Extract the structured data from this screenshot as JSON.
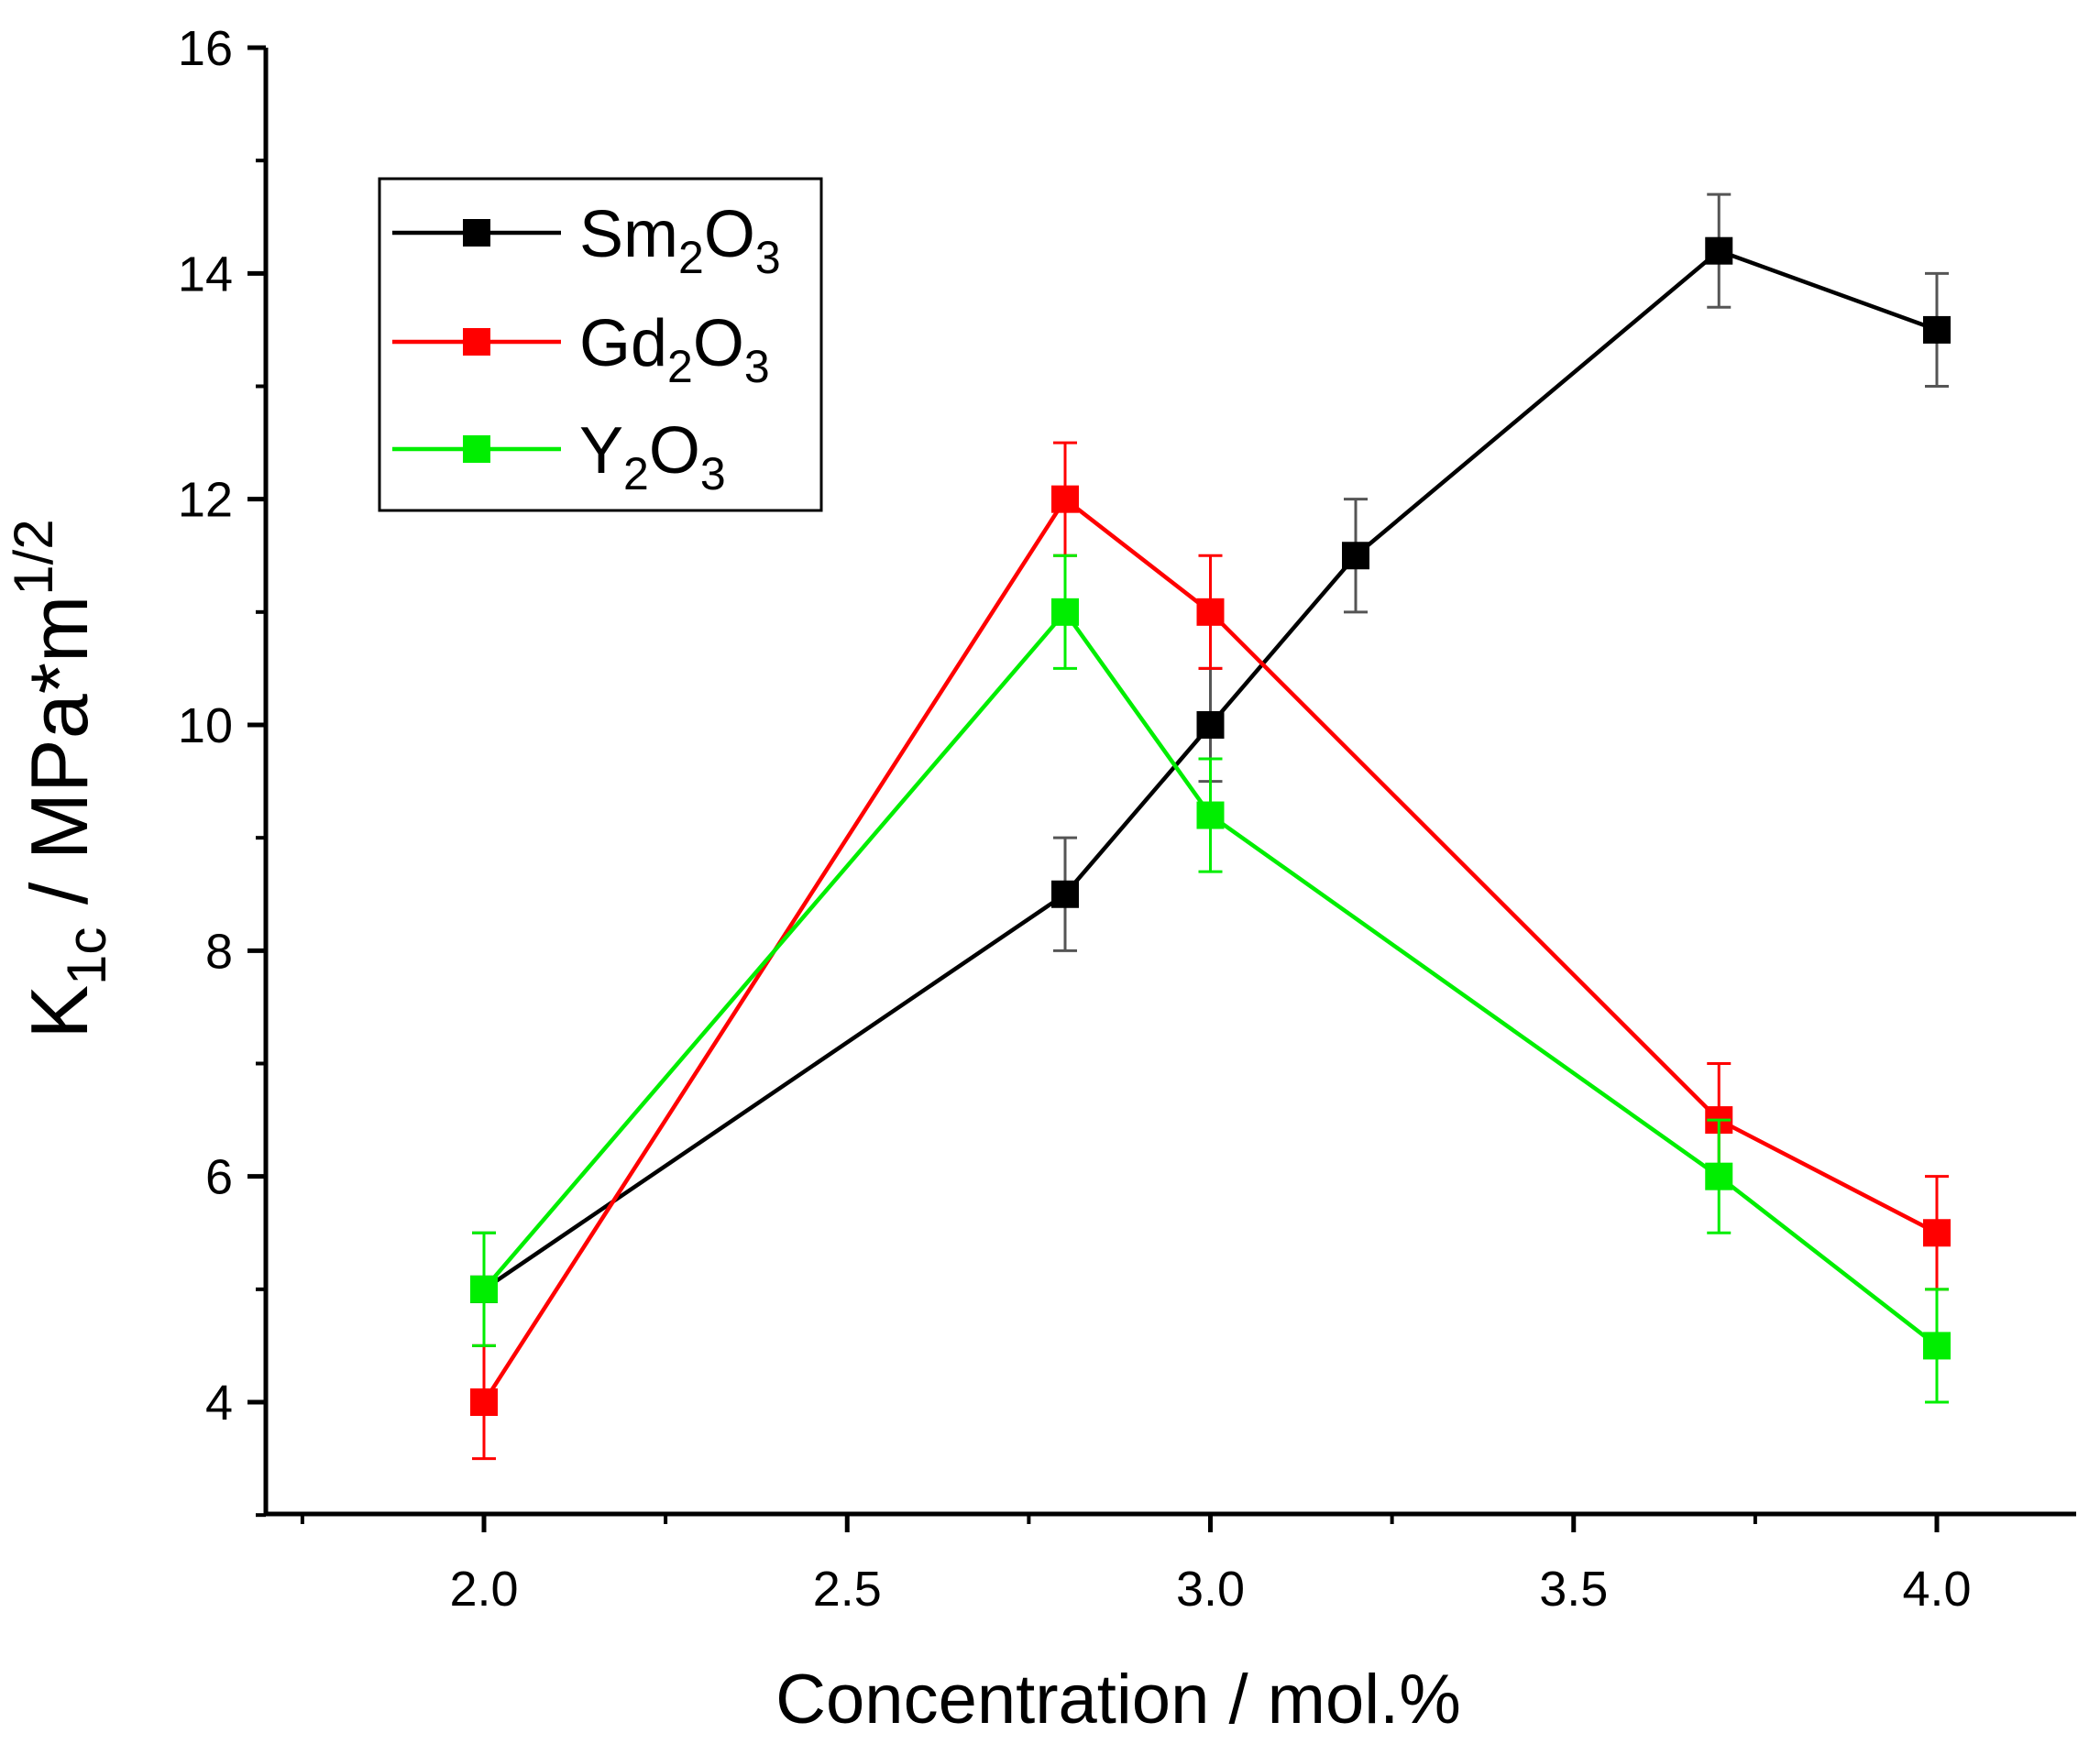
{
  "chart_data": {
    "type": "line",
    "title": "",
    "xlabel": "Concentration / mol.%",
    "ylabel": {
      "base": "K",
      "base_sub": "1c",
      "unit": " / MPa*m",
      "unit_sup": "1/2"
    },
    "xlim": [
      1.75,
      4.2
    ],
    "ylim": [
      3.0,
      16.0
    ],
    "x_ticks": [
      2.0,
      2.5,
      3.0,
      3.5,
      4.0
    ],
    "x_tick_labels": [
      "2.0",
      "2.5",
      "3.0",
      "3.5",
      "4.0"
    ],
    "x_minor_ticks": [
      1.75,
      2.25,
      2.75,
      3.25,
      3.75
    ],
    "y_ticks": [
      4,
      6,
      8,
      10,
      12,
      14,
      16
    ],
    "y_tick_labels": [
      "4",
      "6",
      "8",
      "10",
      "12",
      "14",
      "16"
    ],
    "y_minor_ticks": [
      3,
      5,
      7,
      9,
      11,
      13,
      15
    ],
    "grid": false,
    "legend_position": "top-left",
    "series": [
      {
        "name": "Sm2O3",
        "label": {
          "a": "Sm",
          "sub1": "2",
          "b": "O",
          "sub2": "3"
        },
        "color": "#000000",
        "errorbar_color": "#555555",
        "x": [
          2.0,
          2.8,
          3.0,
          3.2,
          3.7,
          4.0
        ],
        "y": [
          5.0,
          8.5,
          10.0,
          11.5,
          14.2,
          13.5
        ],
        "yerr": [
          0.5,
          0.5,
          0.5,
          0.5,
          0.5,
          0.5
        ]
      },
      {
        "name": "Gd2O3",
        "label": {
          "a": "Gd",
          "sub1": "2",
          "b": "O",
          "sub2": "3"
        },
        "color": "#ff0000",
        "errorbar_color": "#ff0000",
        "x": [
          2.0,
          2.8,
          3.0,
          3.7,
          4.0
        ],
        "y": [
          4.0,
          12.0,
          11.0,
          6.5,
          5.5
        ],
        "yerr": [
          0.5,
          0.5,
          0.5,
          0.5,
          0.5
        ]
      },
      {
        "name": "Y2O3",
        "label": {
          "a": "Y",
          "sub1": "2",
          "b": "O",
          "sub2": "3"
        },
        "color": "#00ee00",
        "errorbar_color": "#00ee00",
        "x": [
          2.0,
          2.8,
          3.0,
          3.7,
          4.0
        ],
        "y": [
          5.0,
          11.0,
          9.2,
          6.0,
          4.5
        ],
        "yerr": [
          0.5,
          0.5,
          0.5,
          0.5,
          0.5
        ]
      }
    ]
  }
}
